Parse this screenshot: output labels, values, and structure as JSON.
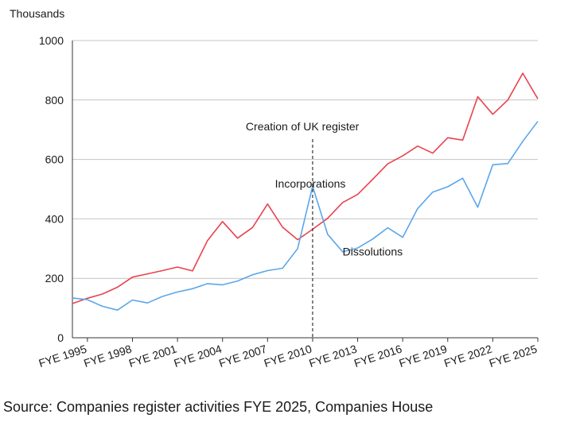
{
  "chart_data": {
    "type": "line",
    "ylabel": "Thousands",
    "ylim": [
      0,
      1000
    ],
    "yticks": [
      0,
      200,
      400,
      600,
      800,
      1000
    ],
    "grid": true,
    "x": [
      1994,
      1995,
      1996,
      1997,
      1998,
      1999,
      2000,
      2001,
      2002,
      2003,
      2004,
      2005,
      2006,
      2007,
      2008,
      2009,
      2010,
      2011,
      2012,
      2013,
      2014,
      2015,
      2016,
      2017,
      2018,
      2019,
      2020,
      2021,
      2022,
      2023,
      2024,
      2025
    ],
    "xticks": [
      {
        "value": 1995,
        "label": "FYE 1995"
      },
      {
        "value": 1998,
        "label": "FYE 1998"
      },
      {
        "value": 2001,
        "label": "FYE 2001"
      },
      {
        "value": 2004,
        "label": "FYE 2004"
      },
      {
        "value": 2007,
        "label": "FYE 2007"
      },
      {
        "value": 2010,
        "label": "FYE 2010"
      },
      {
        "value": 2013,
        "label": "FYE 2013"
      },
      {
        "value": 2016,
        "label": "FYE 2016"
      },
      {
        "value": 2019,
        "label": "FYE 2019"
      },
      {
        "value": 2022,
        "label": "FYE 2022"
      },
      {
        "value": 2025,
        "label": "FYE 2025"
      }
    ],
    "series": [
      {
        "name": "Incorporations",
        "color": "#e8434e",
        "values": [
          115,
          133,
          147,
          170,
          204,
          215,
          226,
          238,
          225,
          327,
          391,
          335,
          371,
          450,
          372,
          330,
          365,
          402,
          455,
          482,
          533,
          585,
          612,
          645,
          621,
          673,
          665,
          811,
          752,
          800,
          890,
          804
        ]
      },
      {
        "name": "Dissolutions",
        "color": "#5aa7ec",
        "values": [
          134,
          128,
          106,
          93,
          127,
          117,
          139,
          154,
          165,
          182,
          178,
          191,
          212,
          226,
          234,
          300,
          510,
          348,
          289,
          302,
          332,
          370,
          338,
          435,
          490,
          508,
          537,
          439,
          582,
          586,
          661,
          728
        ]
      }
    ],
    "annotations": [
      {
        "text": "Creation of UK register",
        "x": 2010,
        "style": "dashed-vertical-line"
      }
    ]
  },
  "source": "Source: Companies register activities FYE 2025, Companies House"
}
